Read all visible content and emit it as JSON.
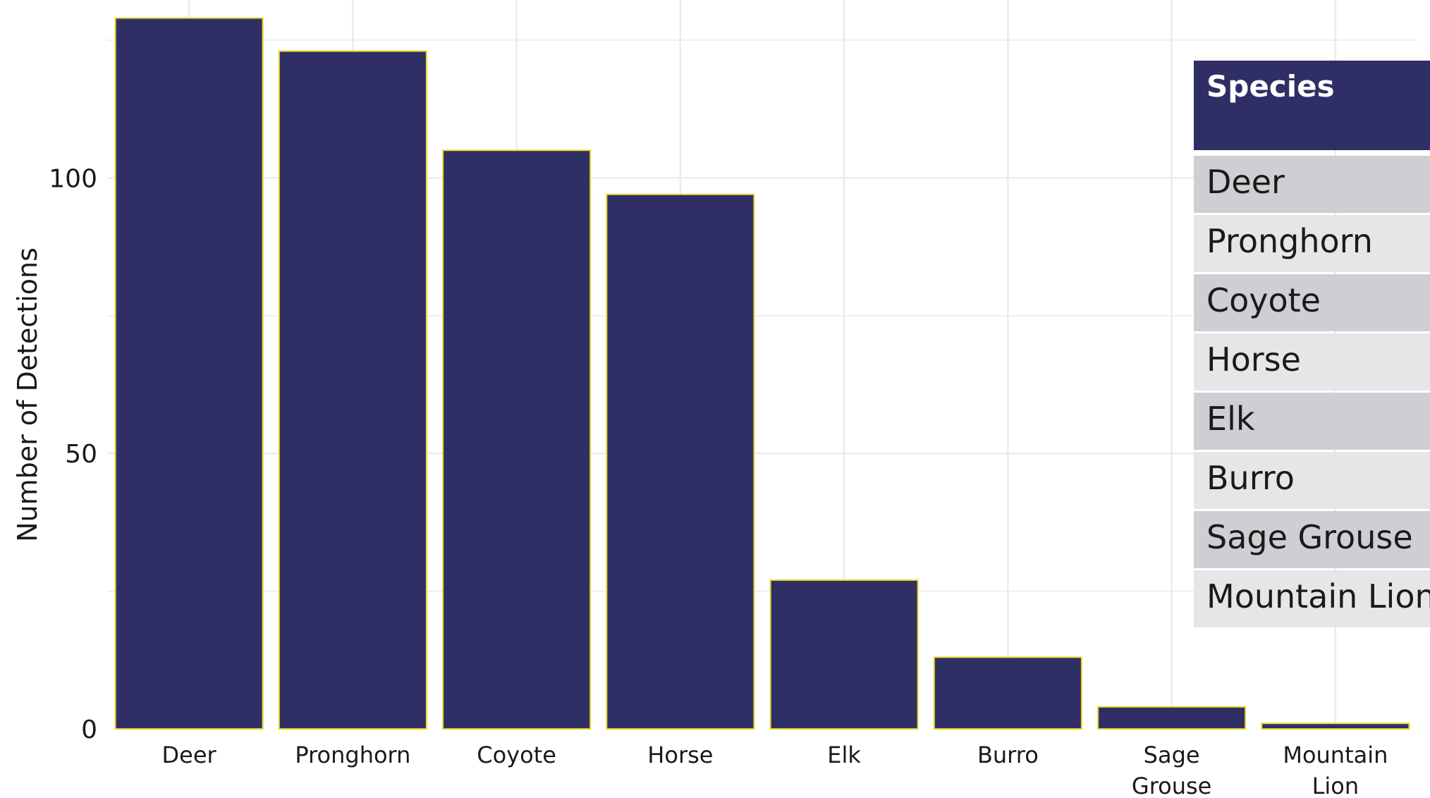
{
  "colors": {
    "bar_fill": "#2f2f66",
    "bar_stroke": "#e8d62a",
    "grid": "#ebebeb",
    "header_bg": "#2f2f66",
    "row_odd": "#cfcfd3",
    "row_even": "#e6e6e8"
  },
  "chart_data": {
    "type": "bar",
    "categories": [
      "Deer",
      "Pronghorn",
      "Coyote",
      "Horse",
      "Elk",
      "Burro",
      "Sage Grouse",
      "Mountain Lion"
    ],
    "category_lines": [
      [
        "Deer"
      ],
      [
        "Pronghorn"
      ],
      [
        "Coyote"
      ],
      [
        "Horse"
      ],
      [
        "Elk"
      ],
      [
        "Burro"
      ],
      [
        "Sage",
        "Grouse"
      ],
      [
        "Mountain",
        "Lion"
      ]
    ],
    "values": [
      129,
      123,
      105,
      97,
      27,
      13,
      4,
      1
    ],
    "ylabel": "Number of Detections",
    "xlabel": "",
    "title": "",
    "ylim": [
      0,
      131
    ],
    "yticks": [
      0,
      50,
      100
    ],
    "grid": true
  },
  "table": {
    "header": "Species",
    "rows": [
      "Deer",
      "Pronghorn",
      "Coyote",
      "Horse",
      "Elk",
      "Burro",
      "Sage Grouse",
      "Mountain Lion"
    ]
  }
}
